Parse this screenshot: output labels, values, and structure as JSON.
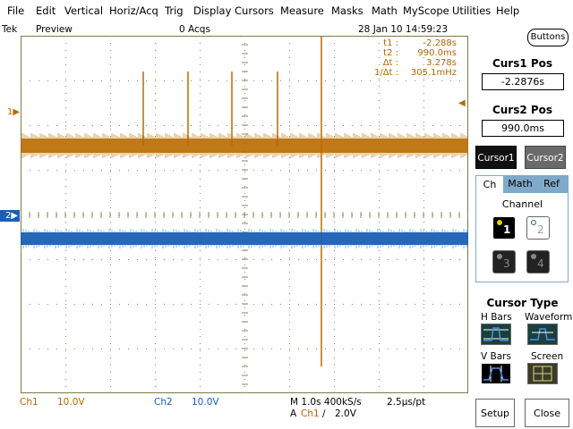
{
  "menu": [
    "File",
    "Edit",
    "Vertical",
    "Horiz/Acq",
    "Trig",
    "Display",
    "Cursors",
    "Measure",
    "Masks",
    "Math",
    "MyScope",
    "Utilities",
    "Help"
  ],
  "status": {
    "brand": "Tek",
    "mode": "Preview",
    "acqs": "0 Acqs",
    "datetime": "28 Jan 10 14:59:23"
  },
  "cursor_readout": [
    {
      "label": "t1 :",
      "value": "-2.288s"
    },
    {
      "label": "t2 :",
      "value": "990.0ms"
    },
    {
      "label": "Δt :",
      "value": "3.278s"
    },
    {
      "label": "1/Δt :",
      "value": "305.1mHz"
    }
  ],
  "markers": {
    "ch1": "1",
    "ch2": "2"
  },
  "bottom": {
    "ch1_label": "Ch1",
    "ch1_scale": "10.0V",
    "ch2_label": "Ch2",
    "ch2_scale": "10.0V",
    "timebase": "M 1.0s 400kS/s",
    "resolution": "2.5μs/pt",
    "trigger_mode": "A",
    "trigger_source": "Ch1",
    "trigger_slope": "∕",
    "trigger_level": "2.0V"
  },
  "panel": {
    "buttons_label": "Buttons",
    "curs1_title": "Curs1 Pos",
    "curs1_value": "-2.2876s",
    "curs2_title": "Curs2 Pos",
    "curs2_value": "990.0ms",
    "cursor1_label": "Cursor1",
    "cursor2_label": "Cursor2",
    "tabs": [
      "Ch",
      "Math",
      "Ref"
    ],
    "channel_title": "Channel",
    "channels": [
      "1",
      "2",
      "3",
      "4"
    ],
    "cursor_type_title": "Cursor Type",
    "cursor_types": [
      "H Bars",
      "Waveform",
      "V Bars",
      "Screen"
    ],
    "setup_label": "Setup",
    "close_label": "Close"
  },
  "colors": {
    "ch1": "#b86a00",
    "ch2": "#1a5fb4",
    "cursor": "#b06800",
    "selected_button": "#111111",
    "unselected_button": "#6a6a6a",
    "tab_active": "#ffffff",
    "tab_inactive": "#7fa9c9"
  }
}
